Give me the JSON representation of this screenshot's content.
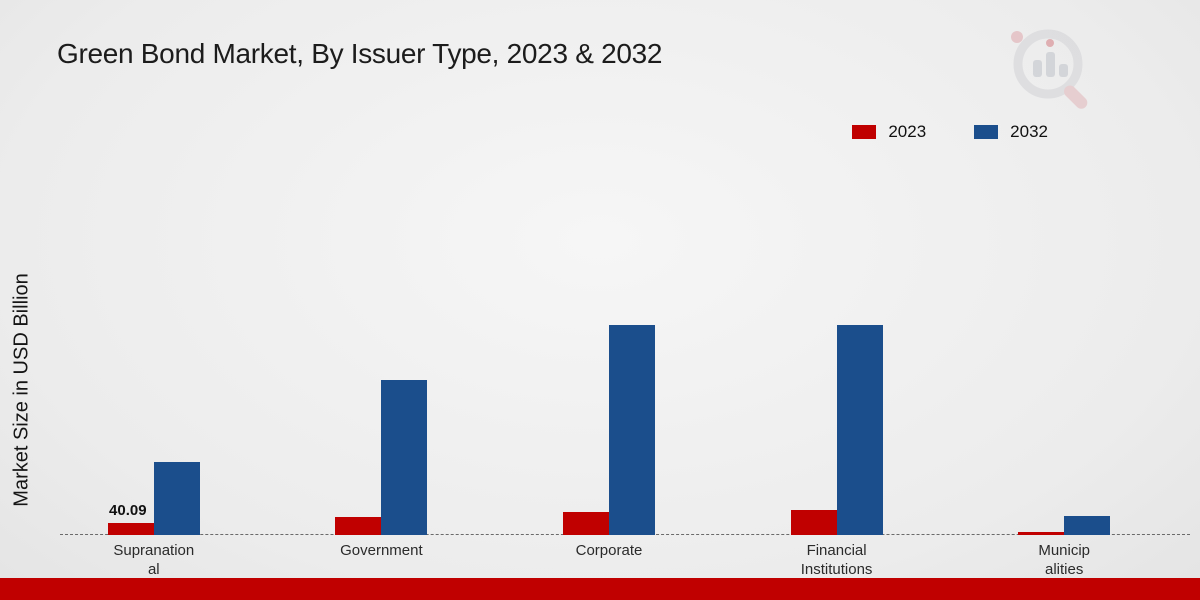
{
  "chart_data": {
    "type": "bar",
    "title": "Green Bond Market, By Issuer Type, 2023 & 2032",
    "ylabel": "Market Size in USD Billion",
    "xlabel": "",
    "categories": [
      "Supranational",
      "Government",
      "Corporate",
      "Financial Institutions",
      "Municipalities"
    ],
    "tick_labels": [
      "Supranation\nal",
      "Government",
      "Corporate",
      "Financial\nInstitutions",
      "Municip\nalities"
    ],
    "series": [
      {
        "name": "2023",
        "color": "#c00000",
        "values": [
          40.09,
          60,
          76,
          83,
          10
        ]
      },
      {
        "name": "2032",
        "color": "#1b4e8c",
        "values": [
          243,
          517,
          700,
          700,
          65
        ]
      }
    ],
    "annotations": [
      {
        "category": "Supranational",
        "series": "2023",
        "text": "40.09"
      }
    ],
    "legend_position": "top-right",
    "grid": false,
    "ylim": [
      0,
      750
    ],
    "units": "USD Billion"
  },
  "footer": {
    "color": "#c00000"
  },
  "icons": {
    "logo": "brand-logo-magnifier-bar-chart"
  }
}
